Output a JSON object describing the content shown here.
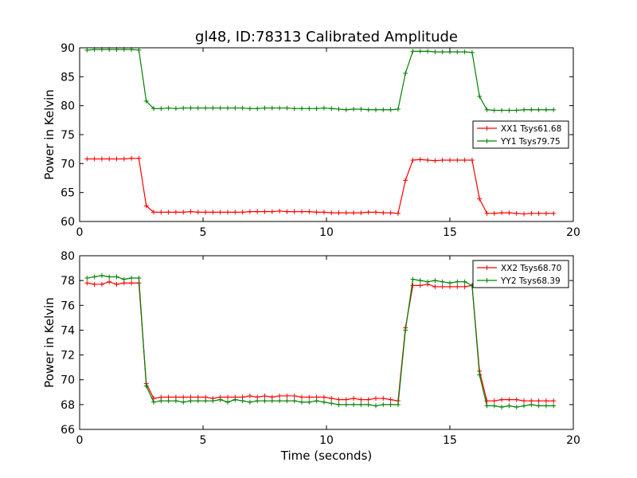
{
  "figure_title": "gl48, ID:78313 Calibrated Amplitude",
  "chart_data": [
    {
      "type": "line",
      "title": "gl48, ID:78313 Calibrated Amplitude",
      "xlabel": "",
      "ylabel": "Power in Kelvin",
      "xlim": [
        0,
        20
      ],
      "ylim": [
        60,
        90
      ],
      "xticks": [
        0,
        5,
        10,
        15,
        20
      ],
      "yticks": [
        60,
        65,
        70,
        75,
        80,
        85,
        90
      ],
      "grid": false,
      "legend_position": "center-right",
      "x": [
        0.3,
        0.6,
        0.9,
        1.2,
        1.5,
        1.8,
        2.1,
        2.4,
        2.7,
        3.0,
        3.3,
        3.6,
        3.9,
        4.2,
        4.5,
        4.8,
        5.1,
        5.4,
        5.7,
        6.0,
        6.3,
        6.6,
        6.9,
        7.2,
        7.5,
        7.8,
        8.1,
        8.4,
        8.7,
        9.0,
        9.3,
        9.6,
        9.9,
        10.2,
        10.5,
        10.8,
        11.1,
        11.4,
        11.7,
        12.0,
        12.3,
        12.6,
        12.9,
        13.2,
        13.5,
        13.8,
        14.1,
        14.4,
        14.7,
        15.0,
        15.3,
        15.6,
        15.9,
        16.2,
        16.5,
        16.8,
        17.1,
        17.4,
        17.7,
        18.0,
        18.3,
        18.6,
        18.9,
        19.2
      ],
      "series": [
        {
          "name": "XX1 Tsys61.68",
          "color": "#ff0000",
          "values": [
            70.8,
            70.8,
            70.8,
            70.8,
            70.8,
            70.8,
            70.9,
            70.9,
            62.7,
            61.6,
            61.6,
            61.6,
            61.6,
            61.6,
            61.7,
            61.6,
            61.6,
            61.6,
            61.6,
            61.6,
            61.6,
            61.6,
            61.7,
            61.7,
            61.7,
            61.7,
            61.8,
            61.7,
            61.7,
            61.7,
            61.7,
            61.6,
            61.6,
            61.5,
            61.5,
            61.5,
            61.5,
            61.5,
            61.6,
            61.6,
            61.5,
            61.5,
            61.4,
            67.1,
            70.6,
            70.7,
            70.6,
            70.5,
            70.6,
            70.6,
            70.6,
            70.6,
            70.6,
            63.9,
            61.4,
            61.4,
            61.5,
            61.5,
            61.4,
            61.3,
            61.4,
            61.4,
            61.4,
            61.4
          ]
        },
        {
          "name": "YY1 Tsys79.75",
          "color": "#008000",
          "values": [
            89.6,
            89.7,
            89.7,
            89.7,
            89.7,
            89.7,
            89.7,
            89.6,
            80.8,
            79.5,
            79.5,
            79.6,
            79.5,
            79.6,
            79.6,
            79.6,
            79.6,
            79.6,
            79.6,
            79.6,
            79.6,
            79.6,
            79.5,
            79.5,
            79.6,
            79.6,
            79.6,
            79.6,
            79.5,
            79.5,
            79.5,
            79.5,
            79.6,
            79.5,
            79.4,
            79.3,
            79.4,
            79.4,
            79.3,
            79.3,
            79.3,
            79.3,
            79.4,
            85.6,
            89.4,
            89.4,
            89.4,
            89.3,
            89.3,
            89.3,
            89.3,
            89.3,
            89.2,
            81.6,
            79.3,
            79.2,
            79.2,
            79.2,
            79.2,
            79.3,
            79.3,
            79.3,
            79.3,
            79.3
          ]
        }
      ]
    },
    {
      "type": "line",
      "title": "",
      "xlabel": "Time (seconds)",
      "ylabel": "Power in Kelvin",
      "xlim": [
        0,
        20
      ],
      "ylim": [
        66,
        80
      ],
      "xticks": [
        0,
        5,
        10,
        15,
        20
      ],
      "yticks": [
        66,
        68,
        70,
        72,
        74,
        76,
        78,
        80
      ],
      "grid": false,
      "legend_position": "top-right",
      "x": [
        0.3,
        0.6,
        0.9,
        1.2,
        1.5,
        1.8,
        2.1,
        2.4,
        2.7,
        3.0,
        3.3,
        3.6,
        3.9,
        4.2,
        4.5,
        4.8,
        5.1,
        5.4,
        5.7,
        6.0,
        6.3,
        6.6,
        6.9,
        7.2,
        7.5,
        7.8,
        8.1,
        8.4,
        8.7,
        9.0,
        9.3,
        9.6,
        9.9,
        10.2,
        10.5,
        10.8,
        11.1,
        11.4,
        11.7,
        12.0,
        12.3,
        12.6,
        12.9,
        13.2,
        13.5,
        13.8,
        14.1,
        14.4,
        14.7,
        15.0,
        15.3,
        15.6,
        15.9,
        16.2,
        16.5,
        16.8,
        17.1,
        17.4,
        17.7,
        18.0,
        18.3,
        18.6,
        18.9,
        19.2
      ],
      "series": [
        {
          "name": "XX2 Tsys68.70",
          "color": "#ff0000",
          "values": [
            77.8,
            77.7,
            77.7,
            77.9,
            77.7,
            77.8,
            77.8,
            77.8,
            69.7,
            68.5,
            68.6,
            68.6,
            68.6,
            68.6,
            68.6,
            68.6,
            68.6,
            68.5,
            68.6,
            68.6,
            68.6,
            68.6,
            68.7,
            68.6,
            68.7,
            68.6,
            68.7,
            68.7,
            68.7,
            68.6,
            68.6,
            68.6,
            68.6,
            68.5,
            68.4,
            68.4,
            68.5,
            68.4,
            68.4,
            68.5,
            68.5,
            68.4,
            68.3,
            74.2,
            77.6,
            77.6,
            77.7,
            77.5,
            77.5,
            77.5,
            77.5,
            77.5,
            77.6,
            70.7,
            68.3,
            68.3,
            68.4,
            68.4,
            68.4,
            68.3,
            68.3,
            68.3,
            68.3,
            68.3
          ]
        },
        {
          "name": "YY2 Tsys68.39",
          "color": "#008000",
          "values": [
            78.2,
            78.3,
            78.4,
            78.3,
            78.3,
            78.1,
            78.2,
            78.2,
            69.5,
            68.2,
            68.3,
            68.3,
            68.3,
            68.2,
            68.3,
            68.3,
            68.3,
            68.3,
            68.4,
            68.2,
            68.4,
            68.3,
            68.2,
            68.3,
            68.3,
            68.3,
            68.3,
            68.3,
            68.3,
            68.2,
            68.2,
            68.3,
            68.2,
            68.1,
            68.0,
            68.0,
            68.0,
            68.0,
            68.0,
            67.9,
            68.0,
            68.0,
            68.0,
            74.0,
            78.1,
            78.0,
            77.9,
            78.0,
            77.9,
            77.8,
            77.9,
            77.9,
            77.6,
            70.4,
            67.9,
            67.9,
            67.8,
            67.9,
            67.8,
            67.9,
            68.0,
            67.9,
            67.9,
            67.9
          ]
        }
      ]
    }
  ]
}
